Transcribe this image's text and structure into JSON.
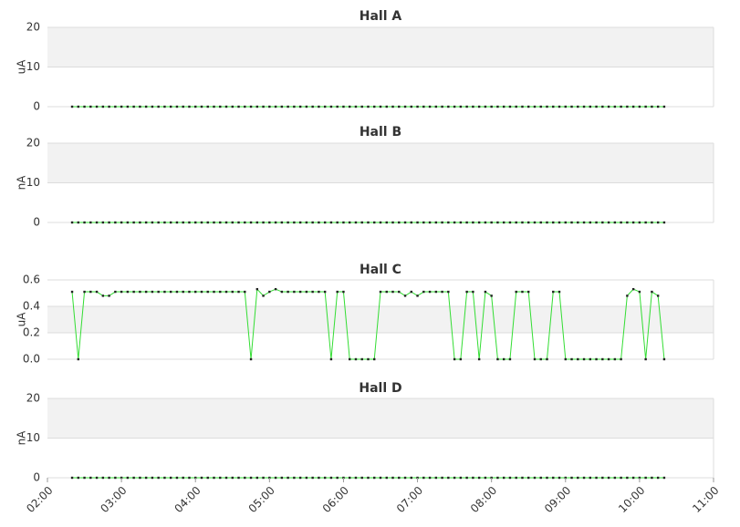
{
  "chart_data": {
    "type": "line",
    "xlim": [
      "02:00",
      "11:00"
    ],
    "xticks": [
      "02:00",
      "03:00",
      "04:00",
      "05:00",
      "06:00",
      "07:00",
      "08:00",
      "09:00",
      "10:00",
      "11:00"
    ],
    "x": [
      "02:20",
      "02:25",
      "02:30",
      "02:35",
      "02:40",
      "02:45",
      "02:50",
      "02:55",
      "03:00",
      "03:05",
      "03:10",
      "03:15",
      "03:20",
      "03:25",
      "03:30",
      "03:35",
      "03:40",
      "03:45",
      "03:50",
      "03:55",
      "04:00",
      "04:05",
      "04:10",
      "04:15",
      "04:20",
      "04:25",
      "04:30",
      "04:35",
      "04:40",
      "04:45",
      "04:50",
      "04:55",
      "05:00",
      "05:05",
      "05:10",
      "05:15",
      "05:20",
      "05:25",
      "05:30",
      "05:35",
      "05:40",
      "05:45",
      "05:50",
      "05:55",
      "06:00",
      "06:05",
      "06:10",
      "06:15",
      "06:20",
      "06:25",
      "06:30",
      "06:35",
      "06:40",
      "06:45",
      "06:50",
      "06:55",
      "07:00",
      "07:05",
      "07:10",
      "07:15",
      "07:20",
      "07:25",
      "07:30",
      "07:35",
      "07:40",
      "07:45",
      "07:50",
      "07:55",
      "08:00",
      "08:05",
      "08:10",
      "08:15",
      "08:20",
      "08:25",
      "08:30",
      "08:35",
      "08:40",
      "08:45",
      "08:50",
      "08:55",
      "09:00",
      "09:05",
      "09:10",
      "09:15",
      "09:20",
      "09:25",
      "09:30",
      "09:35",
      "09:40",
      "09:45",
      "09:50",
      "09:55",
      "10:00",
      "10:05",
      "10:10",
      "10:15",
      "10:20"
    ],
    "grid": true,
    "panels": [
      {
        "title": "Hall A",
        "ylabel": "uA",
        "ylim": [
          0,
          20
        ],
        "yticks": [
          0,
          10,
          20
        ],
        "series": [
          {
            "color": "#33dd33",
            "values": [
              0,
              0,
              0,
              0,
              0,
              0,
              0,
              0,
              0,
              0,
              0,
              0,
              0,
              0,
              0,
              0,
              0,
              0,
              0,
              0,
              0,
              0,
              0,
              0,
              0,
              0,
              0,
              0,
              0,
              0,
              0,
              0,
              0,
              0,
              0,
              0,
              0,
              0,
              0,
              0,
              0,
              0,
              0,
              0,
              0,
              0,
              0,
              0,
              0,
              0,
              0,
              0,
              0,
              0,
              0,
              0,
              0,
              0,
              0,
              0,
              0,
              0,
              0,
              0,
              0,
              0,
              0,
              0,
              0,
              0,
              0,
              0,
              0,
              0,
              0,
              0,
              0,
              0,
              0,
              0,
              0,
              0,
              0,
              0,
              0,
              0,
              0,
              0,
              0,
              0,
              0,
              0,
              0,
              0,
              0,
              0,
              0
            ]
          }
        ]
      },
      {
        "title": "Hall B",
        "ylabel": "nA",
        "ylim": [
          0,
          20
        ],
        "yticks": [
          0,
          10,
          20
        ],
        "series": [
          {
            "color": "#33dd33",
            "values": [
              0,
              0,
              0,
              0,
              0,
              0,
              0,
              0,
              0,
              0,
              0,
              0,
              0,
              0,
              0,
              0,
              0,
              0,
              0,
              0,
              0,
              0,
              0,
              0,
              0,
              0,
              0,
              0,
              0,
              0,
              0,
              0,
              0,
              0,
              0,
              0,
              0,
              0,
              0,
              0,
              0,
              0,
              0,
              0,
              0,
              0,
              0,
              0,
              0,
              0,
              0,
              0,
              0,
              0,
              0,
              0,
              0,
              0,
              0,
              0,
              0,
              0,
              0,
              0,
              0,
              0,
              0,
              0,
              0,
              0,
              0,
              0,
              0,
              0,
              0,
              0,
              0,
              0,
              0,
              0,
              0,
              0,
              0,
              0,
              0,
              0,
              0,
              0,
              0,
              0,
              0,
              0,
              0,
              0,
              0,
              0,
              0
            ]
          }
        ]
      },
      {
        "title": "Hall C",
        "ylabel": "uA",
        "ylim": [
          0,
          0.6
        ],
        "yticks": [
          {
            "value": 0,
            "label": "0.0"
          },
          0.2,
          0.4,
          0.6
        ],
        "series": [
          {
            "color": "#33dd33",
            "values": [
              0.51,
              0,
              0.51,
              0.51,
              0.51,
              0.48,
              0.48,
              0.51,
              0.51,
              0.51,
              0.51,
              0.51,
              0.51,
              0.51,
              0.51,
              0.51,
              0.51,
              0.51,
              0.51,
              0.51,
              0.51,
              0.51,
              0.51,
              0.51,
              0.51,
              0.51,
              0.51,
              0.51,
              0.51,
              0,
              0.53,
              0.48,
              0.51,
              0.53,
              0.51,
              0.51,
              0.51,
              0.51,
              0.51,
              0.51,
              0.51,
              0.51,
              0,
              0.51,
              0.51,
              0,
              0,
              0,
              0,
              0,
              0.51,
              0.51,
              0.51,
              0.51,
              0.48,
              0.51,
              0.48,
              0.51,
              0.51,
              0.51,
              0.51,
              0.51,
              0,
              0,
              0.51,
              0.51,
              0,
              0.51,
              0.48,
              0,
              0,
              0,
              0.51,
              0.51,
              0.51,
              0,
              0,
              0,
              0.51,
              0.51,
              0,
              0,
              0,
              0,
              0,
              0,
              0,
              0,
              0,
              0,
              0.48,
              0.53,
              0.51,
              0,
              0.51,
              0.48,
              0
            ]
          }
        ]
      },
      {
        "title": "Hall D",
        "ylabel": "nA",
        "ylim": [
          0,
          20
        ],
        "yticks": [
          0,
          10,
          20
        ],
        "series": [
          {
            "color": "#33dd33",
            "values": [
              0,
              0,
              0,
              0,
              0,
              0,
              0,
              0,
              0,
              0,
              0,
              0,
              0,
              0,
              0,
              0,
              0,
              0,
              0,
              0,
              0,
              0,
              0,
              0,
              0,
              0,
              0,
              0,
              0,
              0,
              0,
              0,
              0,
              0,
              0,
              0,
              0,
              0,
              0,
              0,
              0,
              0,
              0,
              0,
              0,
              0,
              0,
              0,
              0,
              0,
              0,
              0,
              0,
              0,
              0,
              0,
              0,
              0,
              0,
              0,
              0,
              0,
              0,
              0,
              0,
              0,
              0,
              0,
              0,
              0,
              0,
              0,
              0,
              0,
              0,
              0,
              0,
              0,
              0,
              0,
              0,
              0,
              0,
              0,
              0,
              0,
              0,
              0,
              0,
              0,
              0,
              0,
              0,
              0,
              0,
              0,
              0
            ]
          }
        ]
      }
    ]
  }
}
